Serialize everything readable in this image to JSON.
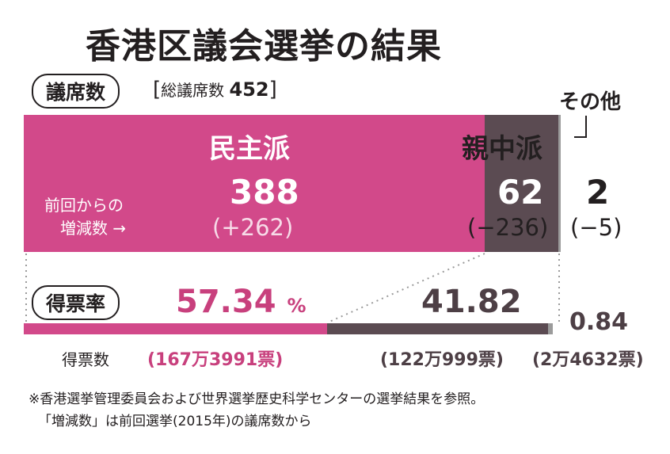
{
  "title": "香港区議会選挙の結果",
  "seats_label": "議席数",
  "total_seats_label": "総議席数",
  "total_seats": "452",
  "change_label_line1": "前回からの",
  "change_label_line2": "増減数 →",
  "vote_rate_label": "得票率",
  "vote_count_label": "得票数",
  "others_label": "その他",
  "parties": [
    {
      "name": "民主派",
      "seats": "388",
      "change": "(+262)",
      "vote_rate": "57.34",
      "rate_unit": "%",
      "votes": "(167万3991票)"
    },
    {
      "name": "親中派",
      "seats": "62",
      "change": "(−236)",
      "vote_rate": "41.82",
      "votes": "(122万999票)"
    },
    {
      "name": "その他",
      "seats": "2",
      "change": "(−5)",
      "vote_rate": "0.84",
      "votes": "(2万4632票)"
    }
  ],
  "footnote_line1": "※香港選挙管理委員会および世界選挙歴史科学センターの選挙結果を参照。",
  "footnote_line2": "「増減数」は前回選挙(2015年)の議席数から",
  "colors": {
    "pro_democracy": "#d2498a",
    "pro_beijing": "#5b4b52",
    "others": "#9b9b9b"
  },
  "chart_data": {
    "type": "bar",
    "title": "香港区議会選挙の結果",
    "stacked": true,
    "categories": [
      "議席数",
      "得票率"
    ],
    "series": [
      {
        "name": "民主派",
        "seats": 388,
        "seat_change": 262,
        "vote_share": 57.34,
        "votes": 1673991
      },
      {
        "name": "親中派",
        "seats": 62,
        "seat_change": -236,
        "vote_share": 41.82,
        "votes": 1220999
      },
      {
        "name": "その他",
        "seats": 2,
        "seat_change": -5,
        "vote_share": 0.84,
        "votes": 24632
      }
    ],
    "total_seats": 452
  }
}
